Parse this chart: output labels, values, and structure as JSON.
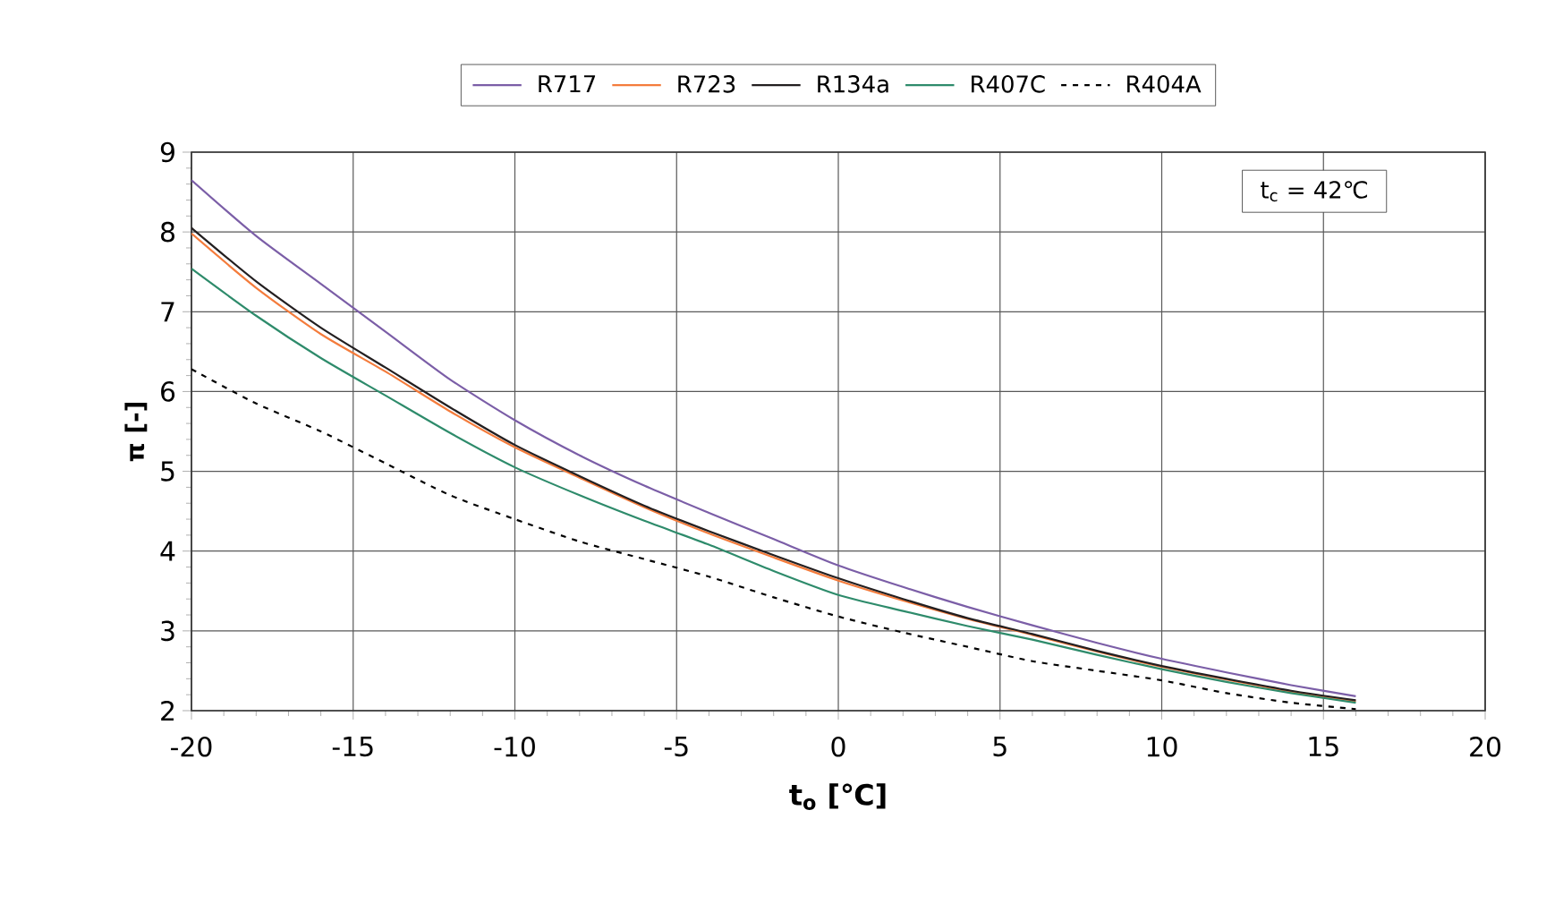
{
  "chart_data": {
    "type": "line",
    "xlabel": "t$_{o}$ [℃]",
    "ylabel": "**π** [-]",
    "annotations": [
      "t$_{c}$ = 42℃"
    ],
    "x": [
      -20,
      -18,
      -16,
      -14,
      -12,
      -10,
      -8,
      -6,
      -4,
      -2,
      0,
      2,
      4,
      6,
      8,
      10,
      12,
      14,
      16
    ],
    "series": [
      {
        "name": "R717",
        "color": "#7b5ea7",
        "values": [
          8.65,
          7.95,
          7.35,
          6.75,
          6.15,
          5.64,
          5.2,
          4.82,
          4.48,
          4.15,
          3.82,
          3.55,
          3.3,
          3.07,
          2.85,
          2.65,
          2.48,
          2.32,
          2.18
        ]
      },
      {
        "name": "R723",
        "color": "#f47c3c",
        "values": [
          7.98,
          7.3,
          6.72,
          6.25,
          5.75,
          5.3,
          4.92,
          4.55,
          4.22,
          3.92,
          3.63,
          3.38,
          3.15,
          2.95,
          2.74,
          2.55,
          2.39,
          2.24,
          2.12
        ]
      },
      {
        "name": "R134a",
        "color": "#231f20",
        "values": [
          8.05,
          7.38,
          6.8,
          6.3,
          5.8,
          5.33,
          4.94,
          4.57,
          4.25,
          3.95,
          3.66,
          3.4,
          3.16,
          2.96,
          2.75,
          2.56,
          2.4,
          2.25,
          2.13
        ]
      },
      {
        "name": "R407C",
        "color": "#2e8b6b",
        "values": [
          7.54,
          6.95,
          6.42,
          5.95,
          5.48,
          5.05,
          4.7,
          4.38,
          4.08,
          3.75,
          3.45,
          3.25,
          3.06,
          2.89,
          2.7,
          2.52,
          2.36,
          2.22,
          2.1
        ]
      },
      {
        "name": "R404A",
        "color": "#000000",
        "line_style": "dashed",
        "values": [
          6.28,
          5.85,
          5.5,
          5.1,
          4.7,
          4.4,
          4.12,
          3.9,
          3.68,
          3.42,
          3.18,
          2.98,
          2.8,
          2.62,
          2.5,
          2.38,
          2.22,
          2.1,
          2.02
        ]
      }
    ],
    "xlim": [
      -20,
      20
    ],
    "xticks": [
      -20,
      -15,
      -10,
      -5,
      0,
      5,
      10,
      15,
      20
    ],
    "ylim": [
      2,
      9
    ],
    "yticks": [
      2,
      3,
      4,
      5,
      6,
      7,
      8,
      9
    ],
    "grid": true,
    "legend": "top",
    "marker": "none",
    "line_style": "solid"
  }
}
